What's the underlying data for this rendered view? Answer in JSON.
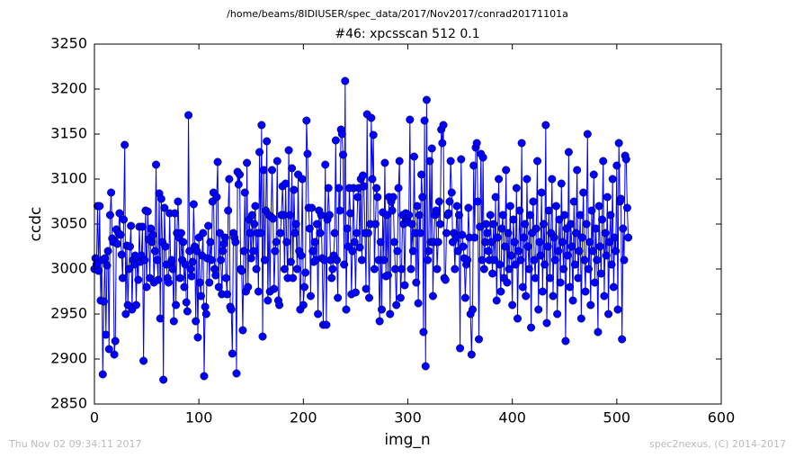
{
  "chart_data": {
    "type": "line",
    "suptitle": "/home/beams/8IDIUSER/spec_data/2017/Nov2017/conrad20171101a",
    "title": "#46: xpcsscan 512 0.1",
    "x_label": "img_n",
    "y_label": "ccdc",
    "footer_left": "Thu Nov 02 09:34:11 2017",
    "footer_right": "spec2nexus, (C) 2014-2017",
    "xlim": [
      0,
      600
    ],
    "xticks": [
      0,
      100,
      200,
      300,
      400,
      500,
      600
    ],
    "ylim": [
      2850,
      3250
    ],
    "yticks": [
      2850,
      2900,
      2950,
      3000,
      3050,
      3100,
      3150,
      3200,
      3250
    ],
    "grid": false,
    "x": [
      0,
      1,
      2,
      3,
      4,
      5,
      6,
      7,
      8,
      9,
      10,
      11,
      12,
      13,
      14,
      15,
      16,
      17,
      18,
      19,
      20,
      21,
      22,
      23,
      24,
      25,
      26,
      27,
      28,
      29,
      30,
      31,
      32,
      33,
      34,
      35,
      36,
      37,
      38,
      39,
      40,
      41,
      42,
      43,
      44,
      45,
      46,
      47,
      48,
      49,
      50,
      51,
      52,
      53,
      54,
      55,
      56,
      57,
      58,
      59,
      60,
      61,
      62,
      63,
      64,
      65,
      66,
      67,
      68,
      69,
      70,
      71,
      72,
      73,
      74,
      75,
      76,
      77,
      78,
      79,
      80,
      81,
      82,
      83,
      84,
      85,
      86,
      87,
      88,
      89,
      90,
      91,
      92,
      93,
      94,
      95,
      96,
      97,
      98,
      99,
      100,
      101,
      102,
      103,
      104,
      105,
      106,
      107,
      108,
      109,
      110,
      111,
      112,
      113,
      114,
      115,
      116,
      117,
      118,
      119,
      120,
      121,
      122,
      123,
      124,
      125,
      126,
      127,
      128,
      129,
      130,
      131,
      132,
      133,
      134,
      135,
      136,
      137,
      138,
      139,
      140,
      141,
      142,
      143,
      144,
      145,
      146,
      147,
      148,
      149,
      150,
      151,
      152,
      153,
      154,
      155,
      156,
      157,
      158,
      159,
      160,
      161,
      162,
      163,
      164,
      165,
      166,
      167,
      168,
      169,
      170,
      171,
      172,
      173,
      174,
      175,
      176,
      177,
      178,
      179,
      180,
      181,
      182,
      183,
      184,
      185,
      186,
      187,
      188,
      189,
      190,
      191,
      192,
      193,
      194,
      195,
      196,
      197,
      198,
      199,
      200,
      201,
      202,
      203,
      204,
      205,
      206,
      207,
      208,
      209,
      210,
      211,
      212,
      213,
      214,
      215,
      216,
      217,
      218,
      219,
      220,
      221,
      222,
      223,
      224,
      225,
      226,
      227,
      228,
      229,
      230,
      231,
      232,
      233,
      234,
      235,
      236,
      237,
      238,
      239,
      240,
      241,
      242,
      243,
      244,
      245,
      246,
      247,
      248,
      249,
      250,
      251,
      252,
      253,
      254,
      255,
      256,
      257,
      258,
      259,
      260,
      261,
      262,
      263,
      264,
      265,
      266,
      267,
      268,
      269,
      270,
      271,
      272,
      273,
      274,
      275,
      276,
      277,
      278,
      279,
      280,
      281,
      282,
      283,
      284,
      285,
      286,
      287,
      288,
      289,
      290,
      291,
      292,
      293,
      294,
      295,
      296,
      297,
      298,
      299,
      300,
      301,
      302,
      303,
      304,
      305,
      306,
      307,
      308,
      309,
      310,
      311,
      312,
      313,
      314,
      315,
      316,
      317,
      318,
      319,
      320,
      321,
      322,
      323,
      324,
      325,
      326,
      327,
      328,
      329,
      330,
      331,
      332,
      333,
      334,
      335,
      336,
      337,
      338,
      339,
      340,
      341,
      342,
      343,
      344,
      345,
      346,
      347,
      348,
      349,
      350,
      351,
      352,
      353,
      354,
      355,
      356,
      357,
      358,
      359,
      360,
      361,
      362,
      363,
      364,
      365,
      366,
      367,
      368,
      369,
      370,
      371,
      372,
      373,
      374,
      375,
      376,
      377,
      378,
      379,
      380,
      381,
      382,
      383,
      384,
      385,
      386,
      387,
      388,
      389,
      390,
      391,
      392,
      393,
      394,
      395,
      396,
      397,
      398,
      399,
      400,
      401,
      402,
      403,
      404,
      405,
      406,
      407,
      408,
      409,
      410,
      411,
      412,
      413,
      414,
      415,
      416,
      417,
      418,
      419,
      420,
      421,
      422,
      423,
      424,
      425,
      426,
      427,
      428,
      429,
      430,
      431,
      432,
      433,
      434,
      435,
      436,
      437,
      438,
      439,
      440,
      441,
      442,
      443,
      444,
      445,
      446,
      447,
      448,
      449,
      450,
      451,
      452,
      453,
      454,
      455,
      456,
      457,
      458,
      459,
      460,
      461,
      462,
      463,
      464,
      465,
      466,
      467,
      468,
      469,
      470,
      471,
      472,
      473,
      474,
      475,
      476,
      477,
      478,
      479,
      480,
      481,
      482,
      483,
      484,
      485,
      486,
      487,
      488,
      489,
      490,
      491,
      492,
      493,
      494,
      495,
      496,
      497,
      498,
      499,
      500,
      501,
      502,
      503,
      504,
      505,
      506,
      507,
      508,
      509,
      510,
      511
    ],
    "series": [
      {
        "name": "ccdc",
        "color": "#0000ff",
        "values": [
          3000,
          3012,
          3005,
          3070,
          2998,
          3070,
          2965,
          3010,
          2883,
          2964,
          3012,
          2927,
          3004,
          3020,
          2911,
          3060,
          3085,
          3034,
          3030,
          2905,
          2920,
          3044,
          3028,
          3040,
          3062,
          3038,
          3016,
          2990,
          3055,
          3138,
          2950,
          3026,
          2960,
          3000,
          3025,
          3048,
          2955,
          3010,
          3005,
          3015,
          2960,
          3012,
          2988,
          3047,
          3008,
          3015,
          3047,
          2898,
          3010,
          3065,
          2980,
          3064,
          3033,
          2990,
          3045,
          3030,
          3038,
          2985,
          3020,
          3116,
          3010,
          2988,
          3084,
          2945,
          3078,
          3030,
          2877,
          3068,
          3025,
          3005,
          2990,
          2985,
          3062,
          3005,
          3010,
          3000,
          2942,
          3062,
          2960,
          3040,
          3075,
          3035,
          2990,
          3040,
          3010,
          3030,
          2980,
          3005,
          2963,
          2953,
          3171,
          3020,
          3000,
          2992,
          3008,
          3072,
          3025,
          2942,
          3020,
          2924,
          3035,
          2985,
          2970,
          3015,
          3040,
          2881,
          2958,
          2950,
          3012,
          3048,
          2985,
          3030,
          3010,
          3075,
          3085,
          3000,
          2993,
          3080,
          3119,
          2980,
          3040,
          3010,
          2972,
          3020,
          3028,
          3035,
          2990,
          2972,
          3065,
          3100,
          2958,
          2955,
          2906,
          3040,
          3035,
          3030,
          2884,
          3108,
          3094,
          3105,
          3000,
          2998,
          2932,
          3020,
          3085,
          2975,
          3118,
          2980,
          3055,
          3040,
          3012,
          3060,
          3020,
          3050,
          3070,
          3000,
          3040,
          2975,
          3130,
          3040,
          3160,
          2925,
          3110,
          3010,
          3065,
          3142,
          2965,
          3060,
          2975,
          3058,
          3110,
          3056,
          2978,
          3020,
          3030,
          3120,
          2965,
          2960,
          3040,
          3060,
          3092,
          3060,
          3000,
          3095,
          3030,
          2990,
          3132,
          3060,
          3008,
          3112,
          2990,
          3088,
          3040,
          3050,
          3000,
          3105,
          3020,
          2955,
          3015,
          3100,
          2960,
          2980,
          2996,
          3165,
          3128,
          3068,
          3045,
          2970,
          3068,
          3020,
          3008,
          3030,
          3010,
          3050,
          2950,
          3065,
          3040,
          3060,
          3012,
          2938,
          3010,
          3116,
          2938,
          3055,
          3090,
          3060,
          3010,
          2990,
          3000,
          3015,
          3040,
          3143,
          3010,
          2968,
          3090,
          3065,
          3155,
          3150,
          3127,
          3005,
          3209,
          2955,
          3045,
          3025,
          3090,
          3062,
          2972,
          3020,
          3090,
          3030,
          2974,
          3040,
          3080,
          3090,
          3024,
          3100,
          3010,
          3104,
          3092,
          3040,
          2978,
          3172,
          3040,
          2968,
          3050,
          3168,
          3100,
          3149,
          3000,
          3050,
          3090,
          3080,
          3010,
          2942,
          3030,
          2955,
          3063,
          3010,
          3118,
          2992,
          3060,
          2993,
          3080,
          2950,
          3075,
          3065,
          3080,
          3030,
          3000,
          2960,
          3020,
          3090,
          3120,
          2968,
          3000,
          3060,
          3050,
          2982,
          3062,
          3055,
          3052,
          3060,
          3166,
          3000,
          3050,
          3020,
          3125,
          3040,
          2985,
          3070,
          2962,
          3060,
          3040,
          3105,
          3080,
          2930,
          3165,
          2892,
          3188,
          3010,
          3020,
          3120,
          3030,
          3134,
          2970,
          3030,
          3060,
          3065,
          3000,
          3030,
          3075,
          3050,
          3155,
          3140,
          3160,
          2990,
          2988,
          3040,
          3060,
          3062,
          3075,
          3120,
          3085,
          3030,
          3040,
          3000,
          3035,
          3070,
          3020,
          3060,
          2912,
          3122,
          3038,
          3025,
          3012,
          2968,
          3005,
          3010,
          3068,
          3035,
          2950,
          2905,
          2955,
          3115,
          3035,
          3135,
          3140,
          3075,
          2922,
          3047,
          3128,
          3010,
          3124,
          3000,
          3030,
          3050,
          3040,
          3020,
          3010,
          3060,
          3030,
          2995,
          3050,
          3010,
          3080,
          2965,
          3035,
          3100,
          3005,
          2975,
          3045,
          3060,
          2990,
          3025,
          3110,
          2985,
          3040,
          3000,
          3070,
          3015,
          2960,
          3055,
          3030,
          3005,
          3090,
          2945,
          3020,
          3065,
          3010,
          3140,
          2980,
          3035,
          3050,
          2970,
          3100,
          3025,
          3000,
          3060,
          2935,
          3040,
          3075,
          3010,
          2990,
          3045,
          3120,
          2955,
          3030,
          3015,
          3085,
          2975,
          3050,
          3005,
          3160,
          2940,
          3025,
          3065,
          2990,
          3040,
          3100,
          2970,
          3035,
          3010,
          3070,
          2950,
          3020,
          3055,
          2985,
          3095,
          3030,
          3000,
          3060,
          2920,
          3045,
          3015,
          3130,
          2980,
          3050,
          3025,
          2965,
          3075,
          3005,
          3040,
          3110,
          2990,
          3020,
          3060,
          2945,
          3035,
          3085,
          3010,
          2975,
          3050,
          3150,
          3000,
          3030,
          2960,
          3065,
          3020,
          3105,
          2985,
          3045,
          3010,
          2930,
          3070,
          3025,
          2995,
          3055,
          3120,
          2970,
          3040,
          3015,
          3080,
          2950,
          3030,
          3060,
          3005,
          3100,
          2980,
          3035,
          3020,
          3115,
          2955,
          3140,
          3075,
          3078,
          2922,
          3045,
          3010,
          3126,
          3122,
          3068,
          3035
        ]
      }
    ]
  }
}
